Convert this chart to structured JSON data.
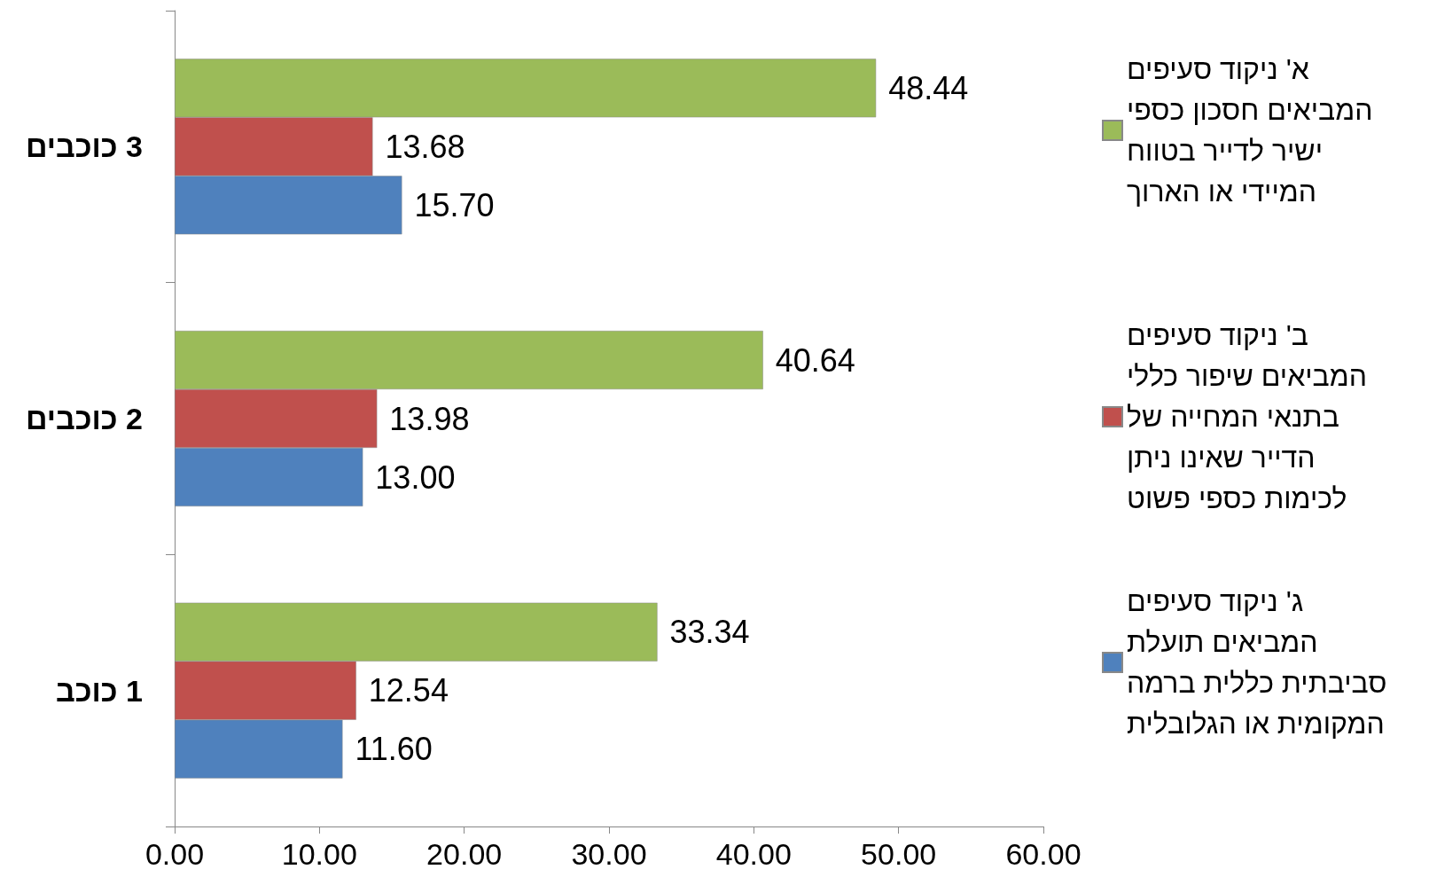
{
  "chart_data": {
    "type": "bar",
    "orientation": "horizontal",
    "categories": [
      "3 כוכבים",
      "2 כוכבים",
      "1 כוכב"
    ],
    "series": [
      {
        "name": "א' ניקוד סעיפים המביאים חסכון כספי ישיר לדייר בטווח המיידי או הארוך",
        "color": "#9bbb59",
        "values": [
          48.44,
          40.64,
          33.34
        ],
        "value_labels": [
          "48.44",
          "40.64",
          "33.34"
        ]
      },
      {
        "name": "ב' ניקוד סעיפים המביאים שיפור כללי בתנאי המחייה של הדייר שאינו ניתן לכימות כספי פשוט",
        "color": "#c0504d",
        "values": [
          13.68,
          13.98,
          12.54
        ],
        "value_labels": [
          "13.68",
          "13.98",
          "12.54"
        ]
      },
      {
        "name": "ג' ניקוד סעיפים המביאים תועלת סביבתית כללית ברמה המקומית או הגלובלית",
        "color": "#4f81bd",
        "values": [
          15.7,
          13.0,
          11.6
        ],
        "value_labels": [
          "15.70",
          "13.00",
          "11.60"
        ]
      }
    ],
    "xlim": [
      0,
      60
    ],
    "xticks": [
      {
        "value": 0,
        "label": "0.00"
      },
      {
        "value": 10,
        "label": "10.00"
      },
      {
        "value": 20,
        "label": "20.00"
      },
      {
        "value": 30,
        "label": "30.00"
      },
      {
        "value": 40,
        "label": "40.00"
      },
      {
        "value": 50,
        "label": "50.00"
      },
      {
        "value": 60,
        "label": "60.00"
      }
    ],
    "grid": false,
    "legend": "right"
  }
}
